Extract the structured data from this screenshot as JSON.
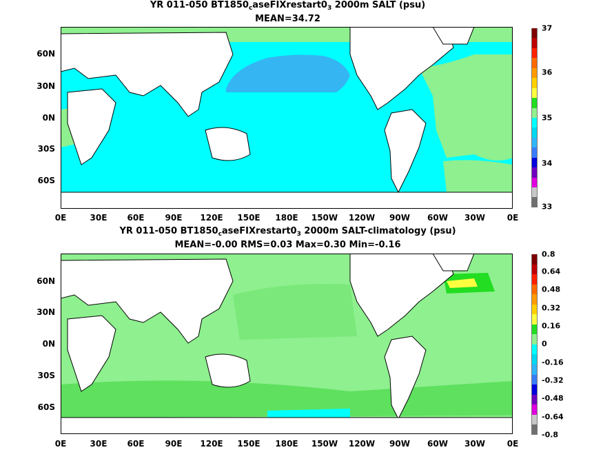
{
  "panels": [
    {
      "title_pre": "YR 011-050 BT1850",
      "title_sub1": "c",
      "title_mid": "aseFIXrestart0",
      "title_sub2": "3",
      "title_post": " 2000m SALT (psu)",
      "stats": "MEAN=34.72",
      "colorbar": {
        "labels": [
          "37",
          "36",
          "35",
          "34",
          "33"
        ],
        "colors": [
          "#7f0000",
          "#bf0000",
          "#ff2000",
          "#ff6a00",
          "#ff9a00",
          "#ffd000",
          "#ffff40",
          "#22dd22",
          "#90f090",
          "#00ffff",
          "#00d8f0",
          "#30b4f8",
          "#3a7cf8",
          "#0000dc",
          "#7000c0",
          "#e000e0",
          "#c8c8c8",
          "#707070"
        ]
      },
      "fields": {
        "ocean": "#00ffff",
        "pacific": "#35b5f2",
        "atlantic": "#8ef08e",
        "land": "#ffffff"
      }
    },
    {
      "title_pre": "YR 011-050 BT1850",
      "title_sub1": "c",
      "title_mid": "aseFIXrestart0",
      "title_sub2": "3",
      "title_post": " 2000m SALT-climatology (psu)",
      "stats": "MEAN=-0.00   RMS=0.03   Max=0.30   Min=-0.16",
      "colorbar": {
        "labels": [
          "0.8",
          "0.64",
          "0.48",
          "0.32",
          "0.16",
          "0",
          "-0.16",
          "-0.32",
          "-0.48",
          "-0.64",
          "-0.8"
        ],
        "colors": [
          "#7f0000",
          "#bf0000",
          "#ff2000",
          "#ff6a00",
          "#ff9a00",
          "#ffd000",
          "#ffff40",
          "#22dd22",
          "#90f090",
          "#00ffff",
          "#00d8f0",
          "#30b4f8",
          "#3a7cf8",
          "#0000dc",
          "#7000c0",
          "#e000e0",
          "#c8c8c8",
          "#707070"
        ]
      },
      "fields": {
        "ocean": "#8ef08e",
        "pacific": "#8ef08e",
        "atlantic": "#8ef08e",
        "land": "#ffffff"
      }
    }
  ],
  "x_ticks": [
    "0E",
    "30E",
    "60E",
    "90E",
    "120E",
    "150E",
    "180E",
    "150W",
    "120W",
    "90W",
    "60W",
    "30W",
    "0E"
  ],
  "y_ticks": [
    "60N",
    "30N",
    "0N",
    "30S",
    "60S"
  ]
}
